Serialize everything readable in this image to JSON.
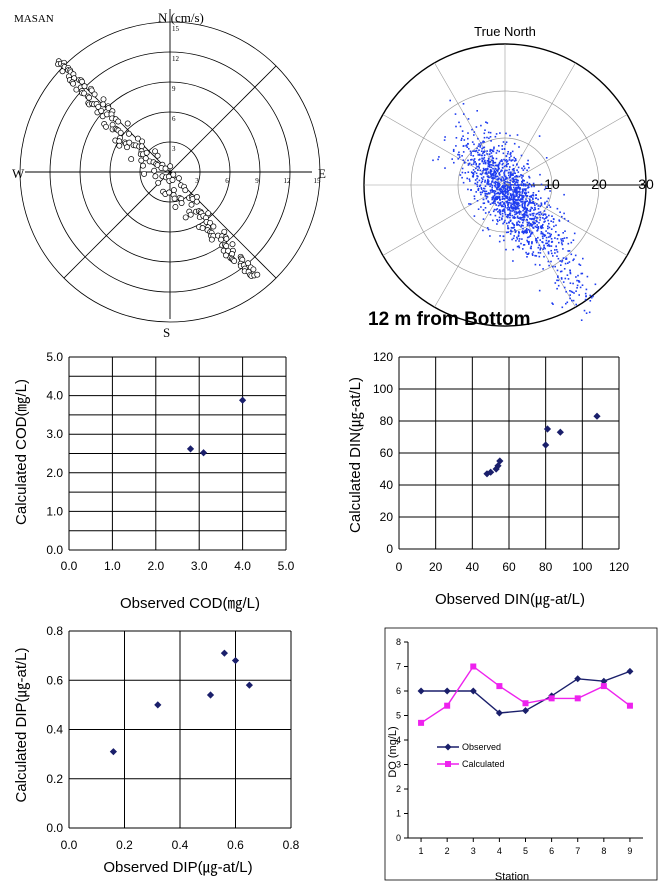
{
  "colors": {
    "ink": "#000000",
    "marker_navy": "#1a1f6b",
    "scatter_blue": "#1f3df0",
    "calc_magenta": "#ee22ee",
    "grid_gray": "#9a9a9a",
    "plot_bg": "#ffffff"
  },
  "chart_data": [
    {
      "id": "masan-rose",
      "type": "scatter",
      "title": "MASAN",
      "radial_unit_label": "N (cm/s)",
      "direction_labels": {
        "north": "N (cm/s)",
        "south": "S",
        "east": "E",
        "west": "W"
      },
      "radial_ticks": [
        "3",
        "6",
        "9",
        "12",
        "15"
      ],
      "rmax": 15,
      "grid": true,
      "points_description_range": {
        "x": [
          -11.5,
          9.0
        ],
        "y": [
          -11.0,
          11.5
        ]
      },
      "band": {
        "from": [
          -11.2,
          11.0
        ],
        "to": [
          8.5,
          -10.5
        ],
        "count": 180
      }
    },
    {
      "id": "true-north-scatter",
      "type": "scatter",
      "title": "True North",
      "caption": "12 m from Bottom",
      "radial_ticks": [
        "10",
        "20",
        "30"
      ],
      "rmax": 30,
      "grid": true,
      "cloud": {
        "center": [
          0.5,
          -1.5
        ],
        "spread": [
          3.5,
          6.0
        ],
        "tail_to": [
          17,
          -25
        ],
        "count": 1500
      }
    },
    {
      "id": "cod",
      "type": "scatter",
      "xlabel": "Observed COD(㎎/L)",
      "ylabel": "Calculated COD(㎎/L)",
      "xlim": [
        0,
        5
      ],
      "ylim": [
        0,
        5
      ],
      "xticks": [
        "0.0",
        "1.0",
        "2.0",
        "3.0",
        "4.0",
        "5.0"
      ],
      "yticks": [
        "0.0",
        "1.0",
        "2.0",
        "3.0",
        "4.0",
        "5.0"
      ],
      "xgrid": [
        0,
        1,
        2,
        3,
        4,
        5
      ],
      "ygrid": [
        0,
        0.5,
        1,
        1.5,
        2,
        2.5,
        3,
        3.5,
        4,
        4.5,
        5
      ],
      "points": [
        {
          "x": 2.8,
          "y": 2.62
        },
        {
          "x": 3.1,
          "y": 2.52
        },
        {
          "x": 4.0,
          "y": 3.88
        }
      ]
    },
    {
      "id": "din",
      "type": "scatter",
      "xlabel": "Observed DIN(㎍-at/L)",
      "ylabel": "Calculated DIN(㎍-at/L)",
      "xlim": [
        0,
        120
      ],
      "ylim": [
        0,
        120
      ],
      "xticks": [
        "0",
        "20",
        "40",
        "60",
        "80",
        "100",
        "120"
      ],
      "yticks": [
        "0",
        "20",
        "40",
        "60",
        "80",
        "100",
        "120"
      ],
      "xgrid": [
        0,
        20,
        40,
        60,
        80,
        100,
        120
      ],
      "ygrid": [
        0,
        20,
        40,
        60,
        80,
        100,
        120
      ],
      "points": [
        {
          "x": 48,
          "y": 47
        },
        {
          "x": 50,
          "y": 48
        },
        {
          "x": 53,
          "y": 50
        },
        {
          "x": 54,
          "y": 52
        },
        {
          "x": 55,
          "y": 55
        },
        {
          "x": 80,
          "y": 65
        },
        {
          "x": 81,
          "y": 75
        },
        {
          "x": 88,
          "y": 73
        },
        {
          "x": 108,
          "y": 83
        }
      ]
    },
    {
      "id": "dip",
      "type": "scatter",
      "xlabel": "Observed DIP(㎍-at/L)",
      "ylabel": "Calculated DIP(㎍-at/L)",
      "xlim": [
        0,
        0.8
      ],
      "ylim": [
        0,
        0.8
      ],
      "xticks": [
        "0.0",
        "0.2",
        "0.4",
        "0.6",
        "0.8"
      ],
      "yticks": [
        "0.0",
        "0.2",
        "0.4",
        "0.6",
        "0.8"
      ],
      "xgrid": [
        0,
        0.2,
        0.4,
        0.6,
        0.8
      ],
      "ygrid": [
        0,
        0.2,
        0.4,
        0.6,
        0.8
      ],
      "points": [
        {
          "x": 0.16,
          "y": 0.31
        },
        {
          "x": 0.32,
          "y": 0.5
        },
        {
          "x": 0.51,
          "y": 0.54
        },
        {
          "x": 0.56,
          "y": 0.71
        },
        {
          "x": 0.6,
          "y": 0.68
        },
        {
          "x": 0.65,
          "y": 0.58
        }
      ]
    },
    {
      "id": "do",
      "type": "line",
      "xlabel": "Station",
      "ylabel": "DO (mg/L)",
      "x": [
        1,
        2,
        3,
        4,
        5,
        6,
        7,
        8,
        9
      ],
      "xticks": [
        "1",
        "2",
        "3",
        "4",
        "5",
        "6",
        "7",
        "8",
        "9"
      ],
      "yticks": [
        "0",
        "1",
        "2",
        "3",
        "4",
        "5",
        "6",
        "7",
        "8"
      ],
      "xlim": [
        0.5,
        9.5
      ],
      "ylim": [
        0,
        8
      ],
      "legend_position": "middle-left",
      "series": [
        {
          "name": "Observed",
          "values": [
            6.0,
            6.0,
            6.0,
            5.1,
            5.2,
            5.8,
            6.5,
            6.4,
            6.8
          ]
        },
        {
          "name": "Calculated",
          "values": [
            4.7,
            5.4,
            7.0,
            6.2,
            5.5,
            5.7,
            5.7,
            6.2,
            5.4
          ]
        }
      ]
    }
  ]
}
